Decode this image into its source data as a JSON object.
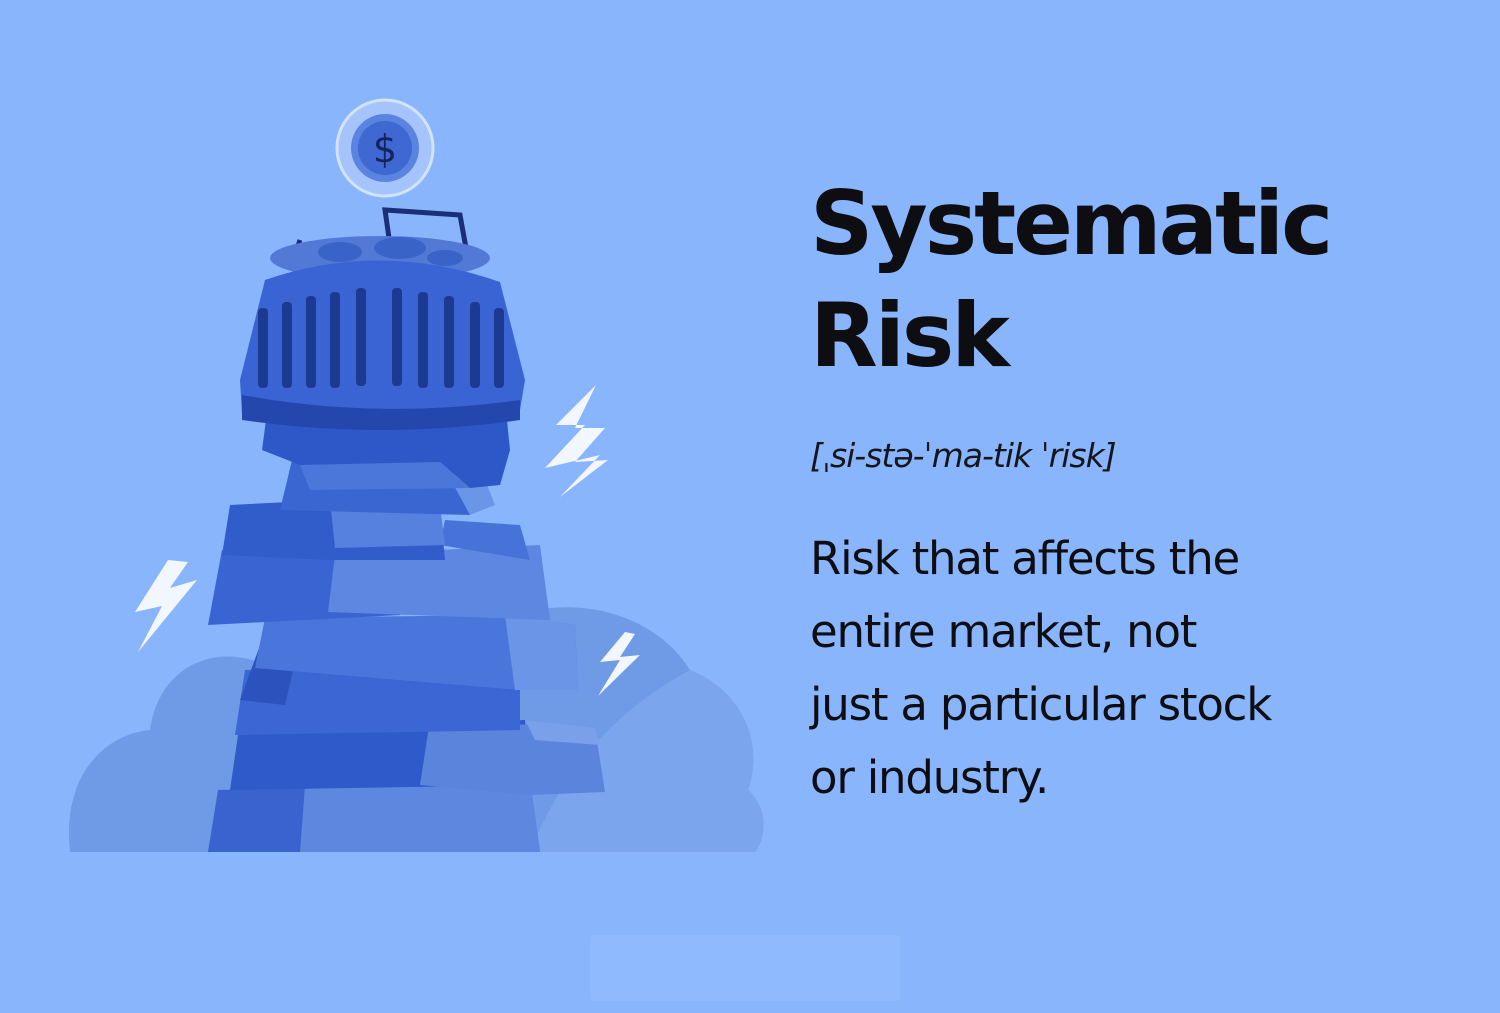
{
  "title": "Systematic\nRisk",
  "pronunciation": "[ˌsi-stə-ˈma-tik ˈrisk]",
  "definition": "Risk that affects the\nentire market, not\njust a particular stock\nor industry.",
  "colors": {
    "background": "#89b5fd",
    "block_dark": "#2f5ac9",
    "block_mid": "#4472d8",
    "block_light": "#6b96e6",
    "cloud": "#6f9ae6",
    "lightning": "#f2f6ff",
    "text": "#0d0d12"
  },
  "icons": [
    "dollar-coin-icon",
    "lightning-bolt-icon",
    "basket-icon",
    "cloud-icon"
  ]
}
